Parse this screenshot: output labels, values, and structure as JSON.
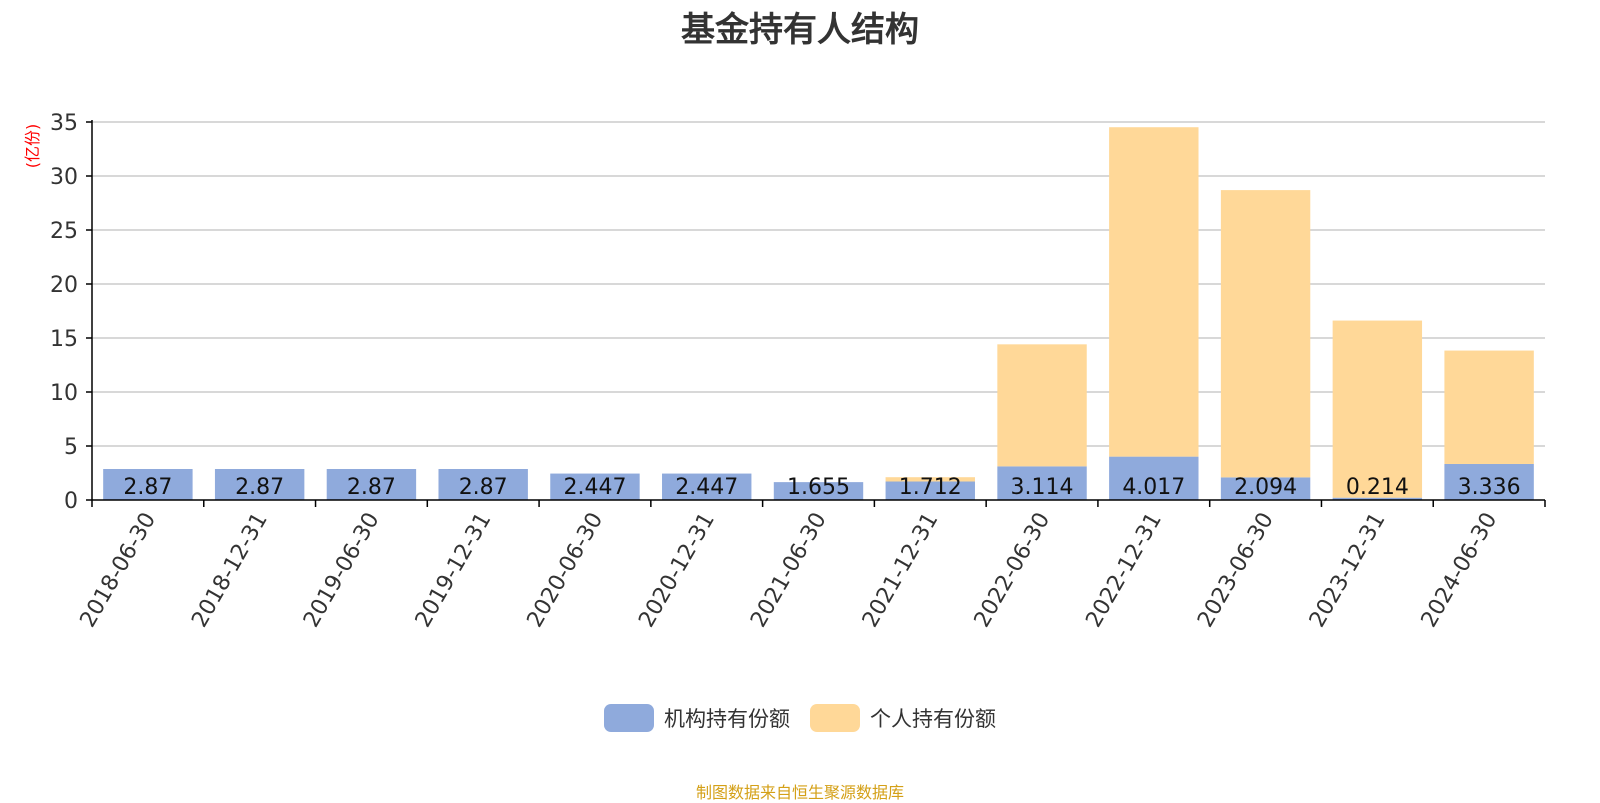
{
  "chart_data": {
    "type": "bar",
    "stacked": true,
    "title": "基金持有人结构",
    "ylabel": "(亿份)",
    "xlabel": "",
    "ylim": [
      0,
      35
    ],
    "yticks": [
      0,
      5,
      10,
      15,
      20,
      25,
      30,
      35
    ],
    "grid": true,
    "legend_position": "bottom",
    "categories": [
      "2018-06-30",
      "2018-12-31",
      "2019-06-30",
      "2019-12-31",
      "2020-06-30",
      "2020-12-31",
      "2021-06-30",
      "2021-12-31",
      "2022-06-30",
      "2022-12-31",
      "2023-06-30",
      "2023-12-31",
      "2024-06-30"
    ],
    "series": [
      {
        "name": "机构持有份额",
        "color": "#8faadc",
        "values": [
          2.87,
          2.87,
          2.87,
          2.87,
          2.447,
          2.447,
          1.655,
          1.712,
          3.114,
          4.017,
          2.094,
          0.214,
          3.336
        ]
      },
      {
        "name": "个人持有份额",
        "color": "#ffd898",
        "values": [
          0.0,
          0.0,
          0.0,
          0.0,
          0.0,
          0.0,
          0.0,
          0.4,
          11.3,
          30.5,
          26.6,
          16.4,
          10.5
        ]
      }
    ],
    "data_labels": [
      "2.87",
      "2.87",
      "2.87",
      "2.87",
      "2.447",
      "2.447",
      "1.655",
      "1.712",
      "3.114",
      "4.017",
      "2.094",
      "0.214",
      "3.336"
    ]
  },
  "source_text": "制图数据来自恒生聚源数据库",
  "colors": {
    "grid": "#cccccc",
    "axis": "#000000",
    "ylabel": "#ff0000",
    "source": "#d4a017"
  }
}
